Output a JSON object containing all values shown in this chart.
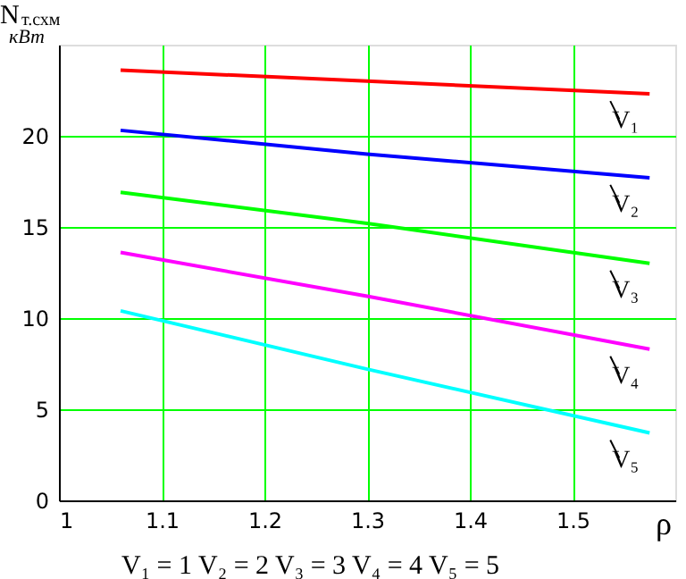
{
  "chart_data": {
    "type": "line",
    "ylabel": "N$_{т.схм}$",
    "xlabel": "ρ",
    "x": [
      1.06,
      1.3,
      1.575
    ],
    "series": [
      {
        "name": "V₁",
        "color": "#ff0000",
        "values": [
          23.6,
          23.0,
          22.3
        ]
      },
      {
        "name": "V₂",
        "color": "#0000ff",
        "values": [
          20.3,
          19.0,
          17.7
        ]
      },
      {
        "name": "V₃",
        "color": "#00ff00",
        "values": [
          16.9,
          15.2,
          13.0
        ]
      },
      {
        "name": "V₄",
        "color": "#ff00ff",
        "values": [
          13.6,
          11.2,
          8.3
        ]
      },
      {
        "name": "V₅",
        "color": "#00ffff",
        "values": [
          10.4,
          7.2,
          3.7
        ]
      }
    ],
    "xlim": [
      1,
      1.6
    ],
    "xticks": [
      1,
      1.1,
      1.2,
      1.3,
      1.4,
      1.5
    ],
    "ylim": [
      0,
      25
    ],
    "yticks": [
      0,
      5,
      10,
      15,
      20
    ],
    "grid": true,
    "legend": false,
    "marker": "none",
    "line_style": "solid",
    "annotations": [
      "кВт",
      "V₁ = 1   V₂ = 2   V₃ = 3   V₄ = 4   V₅ = 5"
    ]
  }
}
